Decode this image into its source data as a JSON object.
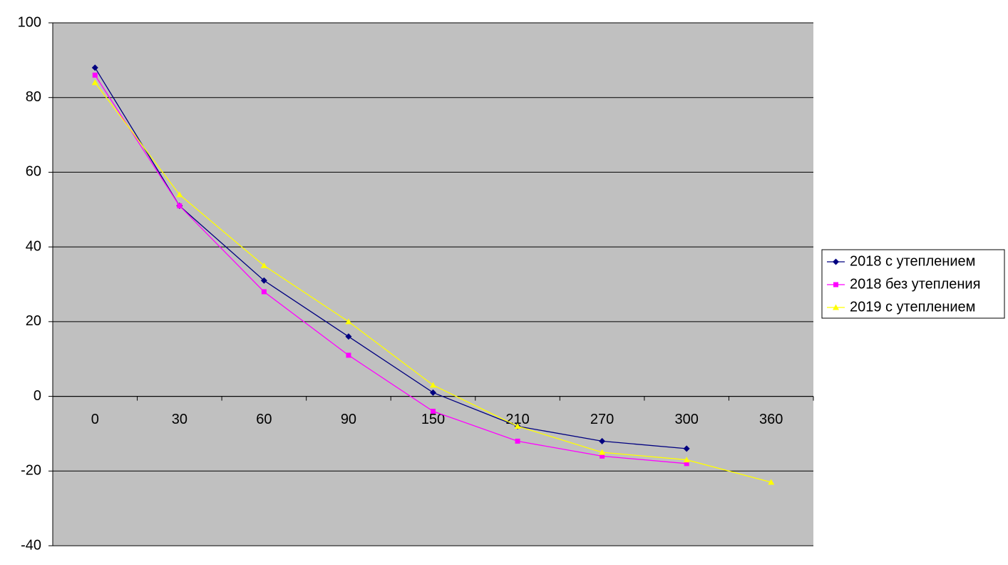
{
  "chart_data": {
    "type": "line",
    "categories": [
      "0",
      "30",
      "60",
      "90",
      "150",
      "210",
      "270",
      "300",
      "360"
    ],
    "series": [
      {
        "name": "2018 с утеплением",
        "color": "#000080",
        "marker": "diamond",
        "values": [
          88,
          51,
          31,
          16,
          1,
          -8,
          -12,
          -14,
          null
        ]
      },
      {
        "name": "2018 без утепления",
        "color": "#ff00ff",
        "marker": "square",
        "values": [
          86,
          51,
          28,
          11,
          -4,
          -12,
          -16,
          -18,
          null
        ]
      },
      {
        "name": "2019 с утеплением",
        "color": "#ffff00",
        "marker": "triangle",
        "values": [
          84,
          54,
          35,
          20,
          3,
          -8,
          -15,
          -17,
          -23
        ]
      }
    ],
    "ylim": [
      -40,
      100
    ],
    "yticks": [
      -40,
      -20,
      0,
      20,
      40,
      60,
      80,
      100
    ],
    "grid": true,
    "legend": "right",
    "background": "#c0c0c0"
  }
}
